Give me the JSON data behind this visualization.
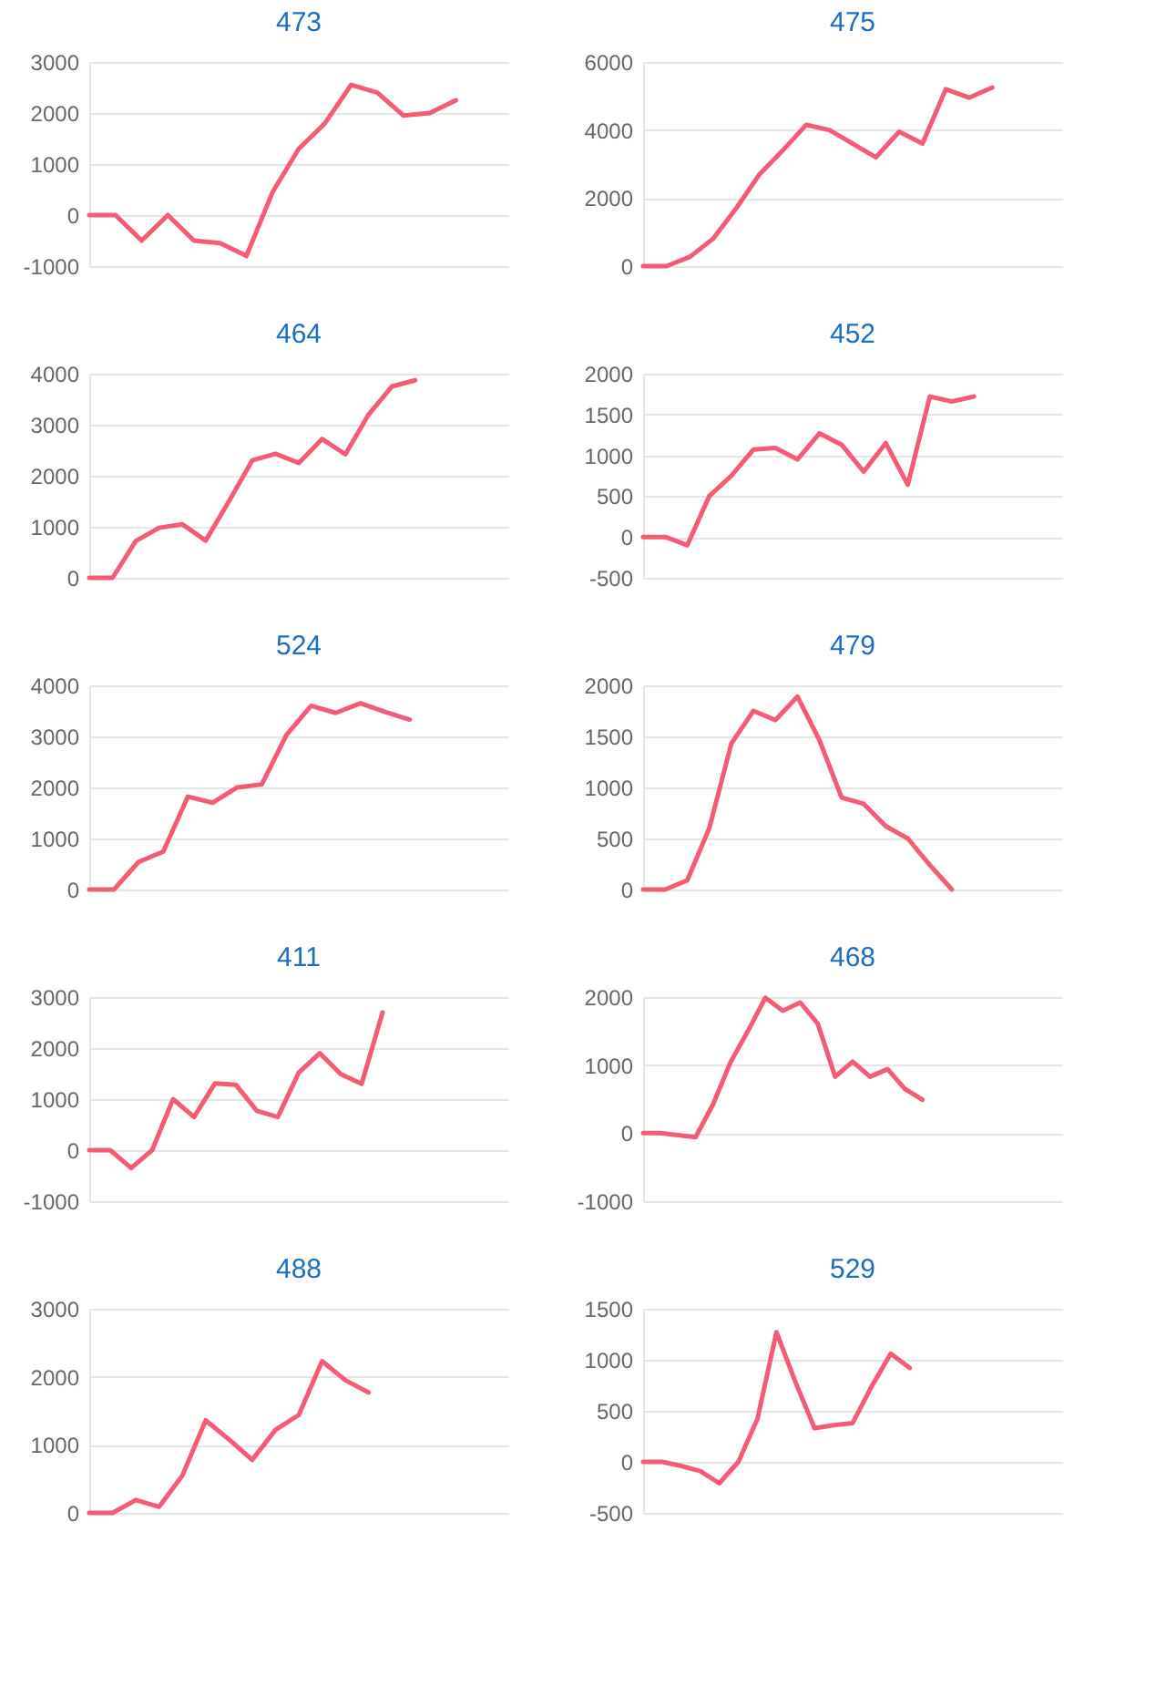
{
  "chart_data": [
    {
      "type": "line",
      "title": "473",
      "categories": [
        null,
        null,
        null,
        null,
        null,
        null,
        null,
        null,
        null,
        null,
        null,
        null,
        null,
        null,
        null,
        null,
        null
      ],
      "series": [
        {
          "color": "#f45b74",
          "values": [
            0,
            0,
            -500,
            0,
            -500,
            -550,
            -800,
            450,
            1300,
            1800,
            2550,
            2400,
            1950,
            2000,
            2250,
            null,
            null
          ]
        }
      ],
      "ylim": [
        -1000,
        3000
      ],
      "yticks": [
        -1000,
        0,
        1000,
        2000,
        3000
      ],
      "grid": "y",
      "legend": false,
      "marker": "none",
      "line_style": "solid"
    },
    {
      "type": "line",
      "title": "475",
      "categories": [
        null,
        null,
        null,
        null,
        null,
        null,
        null,
        null,
        null,
        null,
        null,
        null,
        null,
        null,
        null,
        null,
        null,
        null,
        null
      ],
      "series": [
        {
          "color": "#f45b74",
          "values": [
            0,
            0,
            270,
            800,
            1700,
            2700,
            3400,
            4150,
            4000,
            3600,
            3200,
            3950,
            3600,
            5200,
            4950,
            5250,
            null,
            null,
            null
          ]
        }
      ],
      "ylim": [
        0,
        6000
      ],
      "yticks": [
        0,
        2000,
        4000,
        6000
      ],
      "grid": "y",
      "legend": false,
      "marker": "none",
      "line_style": "solid"
    },
    {
      "type": "line",
      "title": "464",
      "categories": [
        null,
        null,
        null,
        null,
        null,
        null,
        null,
        null,
        null,
        null,
        null,
        null,
        null,
        null,
        null,
        null,
        null,
        null,
        null
      ],
      "series": [
        {
          "color": "#f45b74",
          "values": [
            0,
            0,
            720,
            980,
            1050,
            730,
            1500,
            2300,
            2430,
            2250,
            2720,
            2420,
            3200,
            3750,
            3870,
            null,
            null,
            null,
            null
          ]
        }
      ],
      "ylim": [
        0,
        4000
      ],
      "yticks": [
        0,
        1000,
        2000,
        3000,
        4000
      ],
      "grid": "y",
      "legend": false,
      "marker": "none",
      "line_style": "solid"
    },
    {
      "type": "line",
      "title": "452",
      "categories": [
        null,
        null,
        null,
        null,
        null,
        null,
        null,
        null,
        null,
        null,
        null,
        null,
        null,
        null,
        null,
        null,
        null,
        null,
        null,
        null
      ],
      "series": [
        {
          "color": "#f45b74",
          "values": [
            0,
            0,
            -100,
            500,
            750,
            1070,
            1090,
            950,
            1270,
            1130,
            800,
            1150,
            640,
            1720,
            1660,
            1720,
            null,
            null,
            null,
            null
          ]
        }
      ],
      "ylim": [
        -500,
        2000
      ],
      "yticks": [
        -500,
        0,
        500,
        1000,
        1500,
        2000
      ],
      "grid": "y",
      "legend": false,
      "marker": "none",
      "line_style": "solid"
    },
    {
      "type": "line",
      "title": "524",
      "categories": [
        null,
        null,
        null,
        null,
        null,
        null,
        null,
        null,
        null,
        null,
        null,
        null,
        null,
        null,
        null,
        null,
        null,
        null
      ],
      "series": [
        {
          "color": "#f45b74",
          "values": [
            0,
            0,
            540,
            740,
            1820,
            1700,
            2000,
            2060,
            3030,
            3600,
            3460,
            3650,
            3480,
            3330,
            null,
            null,
            null,
            null
          ]
        }
      ],
      "ylim": [
        0,
        4000
      ],
      "yticks": [
        0,
        1000,
        2000,
        3000,
        4000
      ],
      "grid": "y",
      "legend": false,
      "marker": "none",
      "line_style": "solid"
    },
    {
      "type": "line",
      "title": "479",
      "categories": [
        null,
        null,
        null,
        null,
        null,
        null,
        null,
        null,
        null,
        null,
        null,
        null,
        null,
        null,
        null,
        null,
        null,
        null,
        null,
        null
      ],
      "series": [
        {
          "color": "#f45b74",
          "values": [
            0,
            0,
            90,
            600,
            1430,
            1750,
            1660,
            1890,
            1460,
            900,
            840,
            620,
            500,
            240,
            0,
            null,
            null,
            null,
            null,
            null
          ]
        }
      ],
      "ylim": [
        0,
        2000
      ],
      "yticks": [
        0,
        500,
        1000,
        1500,
        2000
      ],
      "grid": "y",
      "legend": false,
      "marker": "none",
      "line_style": "solid"
    },
    {
      "type": "line",
      "title": "411",
      "categories": [
        null,
        null,
        null,
        null,
        null,
        null,
        null,
        null,
        null,
        null,
        null,
        null,
        null,
        null,
        null,
        null,
        null,
        null,
        null,
        null,
        null
      ],
      "series": [
        {
          "color": "#f45b74",
          "values": [
            0,
            0,
            -350,
            0,
            1000,
            650,
            1310,
            1280,
            770,
            650,
            1520,
            1900,
            1490,
            1300,
            2700,
            null,
            null,
            null,
            null,
            null,
            null
          ]
        }
      ],
      "ylim": [
        -1000,
        3000
      ],
      "yticks": [
        -1000,
        0,
        1000,
        2000,
        3000
      ],
      "grid": "y",
      "legend": false,
      "marker": "none",
      "line_style": "solid"
    },
    {
      "type": "line",
      "title": "468",
      "categories": [
        null,
        null,
        null,
        null,
        null,
        null,
        null,
        null,
        null,
        null,
        null,
        null,
        null,
        null,
        null,
        null,
        null,
        null,
        null,
        null,
        null,
        null,
        null,
        null,
        null
      ],
      "series": [
        {
          "color": "#f45b74",
          "values": [
            0,
            0,
            -30,
            -60,
            420,
            1040,
            1500,
            1990,
            1800,
            1920,
            1610,
            830,
            1050,
            830,
            940,
            650,
            490,
            null,
            null,
            null,
            null,
            null,
            null,
            null,
            null
          ]
        }
      ],
      "ylim": [
        -1000,
        2000
      ],
      "yticks": [
        -1000,
        0,
        1000,
        2000
      ],
      "grid": "y",
      "legend": false,
      "marker": "none",
      "line_style": "solid"
    },
    {
      "type": "line",
      "title": "488",
      "categories": [
        null,
        null,
        null,
        null,
        null,
        null,
        null,
        null,
        null,
        null,
        null,
        null,
        null,
        null,
        null,
        null,
        null,
        null,
        null
      ],
      "series": [
        {
          "color": "#f45b74",
          "values": [
            0,
            0,
            190,
            90,
            550,
            1360,
            1080,
            780,
            1220,
            1440,
            2230,
            1950,
            1770,
            null,
            null,
            null,
            null,
            null,
            null
          ]
        }
      ],
      "ylim": [
        0,
        3000
      ],
      "yticks": [
        0,
        1000,
        2000,
        3000
      ],
      "grid": "y",
      "legend": false,
      "marker": "none",
      "line_style": "solid"
    },
    {
      "type": "line",
      "title": "529",
      "categories": [
        null,
        null,
        null,
        null,
        null,
        null,
        null,
        null,
        null,
        null,
        null,
        null,
        null,
        null,
        null,
        null,
        null,
        null,
        null,
        null,
        null,
        null,
        null
      ],
      "series": [
        {
          "color": "#f45b74",
          "values": [
            0,
            0,
            -40,
            -90,
            -210,
            0,
            420,
            1270,
            780,
            330,
            360,
            380,
            740,
            1060,
            920,
            null,
            null,
            null,
            null,
            null,
            null,
            null,
            null
          ]
        }
      ],
      "ylim": [
        -500,
        1500
      ],
      "yticks": [
        -500,
        0,
        500,
        1000,
        1500
      ],
      "grid": "y",
      "legend": false,
      "marker": "none",
      "line_style": "solid"
    }
  ]
}
